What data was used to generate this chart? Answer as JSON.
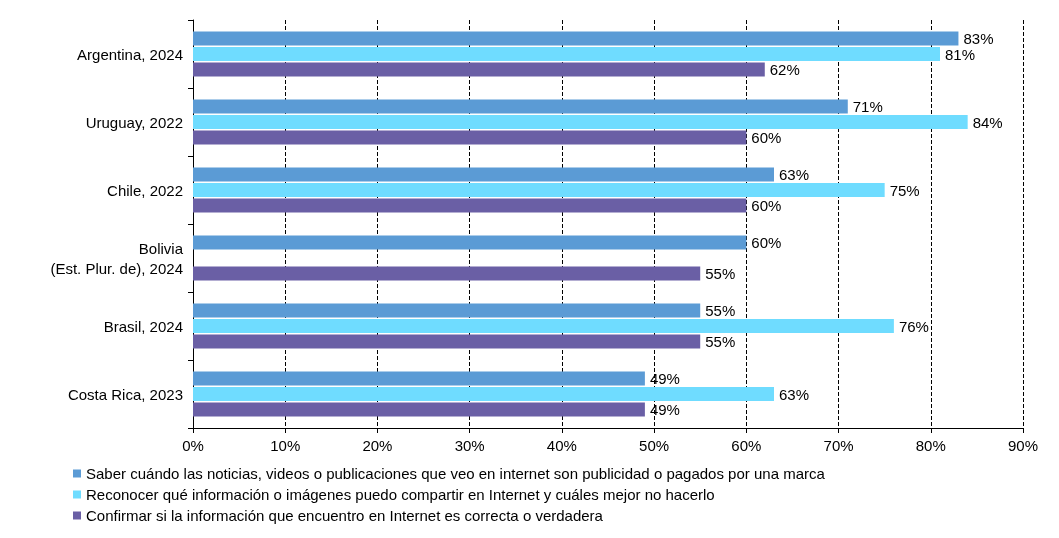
{
  "chart_data": {
    "type": "bar",
    "orientation": "horizontal",
    "categories": [
      "Argentina, 2024",
      "Uruguay, 2022",
      "Chile, 2022",
      "Bolivia\n(Est. Plur. de), 2024",
      "Brasil, 2024",
      "Costa Rica, 2023"
    ],
    "series": [
      {
        "name": "Saber cuándo las noticias, videos o publicaciones que veo en internet son publicidad o pagados por una marca",
        "color": "#5b9bd5",
        "values": [
          83,
          71,
          63,
          60,
          55,
          49
        ],
        "value_labels": [
          "83%",
          "71%",
          "63%",
          "60%",
          "55%",
          "49%"
        ]
      },
      {
        "name": "Reconocer qué información o imágenes puedo compartir en Internet y cuáles mejor no hacerlo",
        "color": "#6fdcff",
        "values": [
          81,
          84,
          75,
          null,
          76,
          63
        ],
        "value_labels": [
          "81%",
          "84%",
          "75%",
          null,
          "76%",
          "63%"
        ]
      },
      {
        "name": "Confirmar si la información que encuentro en Internet es correcta o verdadera",
        "color": "#6a5fa5",
        "values": [
          62,
          60,
          60,
          55,
          55,
          49
        ],
        "value_labels": [
          "62%",
          "60%",
          "60%",
          "55%",
          "55%",
          "49%"
        ]
      }
    ],
    "xlim": [
      0,
      90
    ],
    "xticks": [
      {
        "value": 0,
        "label": "0%"
      },
      {
        "value": 10,
        "label": "10%"
      },
      {
        "value": 20,
        "label": "20%"
      },
      {
        "value": 30,
        "label": "30%"
      },
      {
        "value": 40,
        "label": "40%"
      },
      {
        "value": 50,
        "label": "50%"
      },
      {
        "value": 60,
        "label": "60%"
      },
      {
        "value": 70,
        "label": "70%"
      },
      {
        "value": 80,
        "label": "80%"
      },
      {
        "value": 90,
        "label": "90%"
      }
    ],
    "grid": "x",
    "legend": "bottom"
  }
}
